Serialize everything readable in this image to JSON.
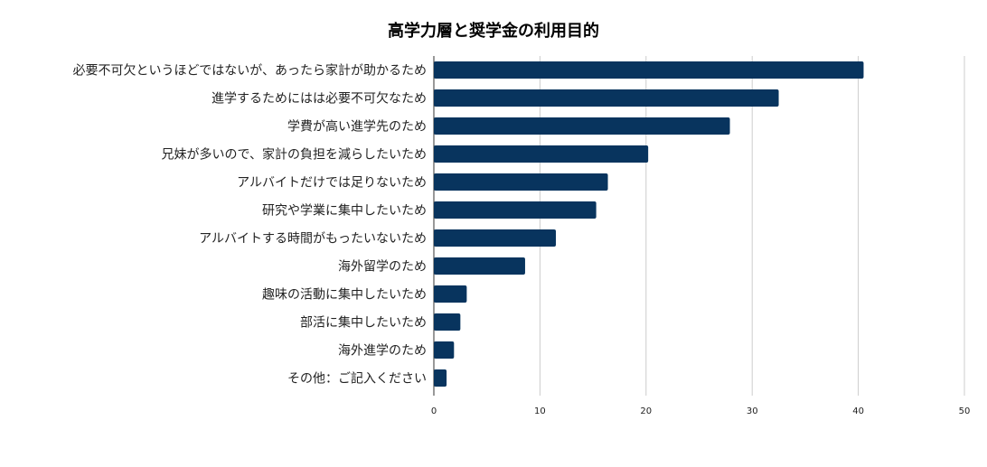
{
  "chart_data": {
    "type": "bar",
    "orientation": "horizontal",
    "title": "高学力層と奨学金の利用目的",
    "xlabel": "",
    "ylabel": "",
    "xlim": [
      0,
      50
    ],
    "xticks": [
      0,
      10,
      20,
      30,
      40,
      50
    ],
    "grid": true,
    "legend": "none",
    "bar_color": "#08345e",
    "categories": [
      "必要不可欠というほどではないが、あったら家計が助かるため",
      "進学するためにはは必要不可欠なため",
      "学費が高い進学先のため",
      "兄妹が多いので、家計の負担を減らしたいため",
      "アルバイトだけでは足りないため",
      "研究や学業に集中したいため",
      "アルバイトする時間がもったいないため",
      "海外留学のため",
      "趣味の活動に集中したいため",
      "部活に集中したいため",
      "海外進学のため",
      "その他：ご記入ください"
    ],
    "values": [
      40.5,
      32.5,
      27.9,
      20.2,
      16.4,
      15.3,
      11.5,
      8.6,
      3.1,
      2.5,
      1.9,
      1.2
    ]
  }
}
